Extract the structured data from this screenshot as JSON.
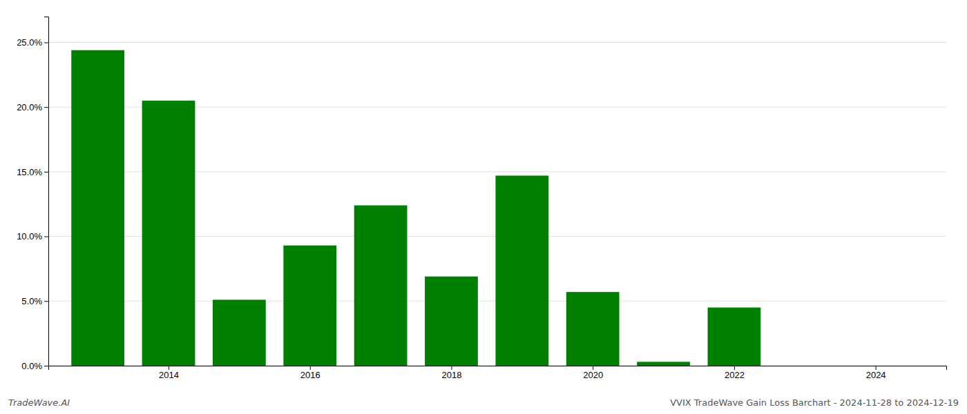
{
  "chart_data": {
    "type": "bar",
    "x": [
      2013,
      2014,
      2015,
      2016,
      2017,
      2018,
      2019,
      2020,
      2021,
      2022,
      2023
    ],
    "values": [
      0.244,
      0.205,
      0.051,
      0.093,
      0.124,
      0.069,
      0.147,
      0.057,
      0.003,
      0.045,
      0.0
    ],
    "color": "#008000",
    "xlim": [
      2012.3,
      2025.0
    ],
    "xticks": [
      2014,
      2016,
      2018,
      2020,
      2022,
      2024
    ],
    "ylim": [
      0,
      0.27
    ],
    "yticks": [
      {
        "value": 0.0,
        "label": "0.0%"
      },
      {
        "value": 0.05,
        "label": "5.0%"
      },
      {
        "value": 0.1,
        "label": "10.0%"
      },
      {
        "value": 0.15,
        "label": "15.0%"
      },
      {
        "value": 0.2,
        "label": "20.0%"
      },
      {
        "value": 0.25,
        "label": "25.0%"
      }
    ],
    "grid": true,
    "annotations": [
      "TradeWave.AI",
      "VVIX TradeWave Gain Loss Barchart - 2024-11-28 to 2024-12-19"
    ]
  }
}
